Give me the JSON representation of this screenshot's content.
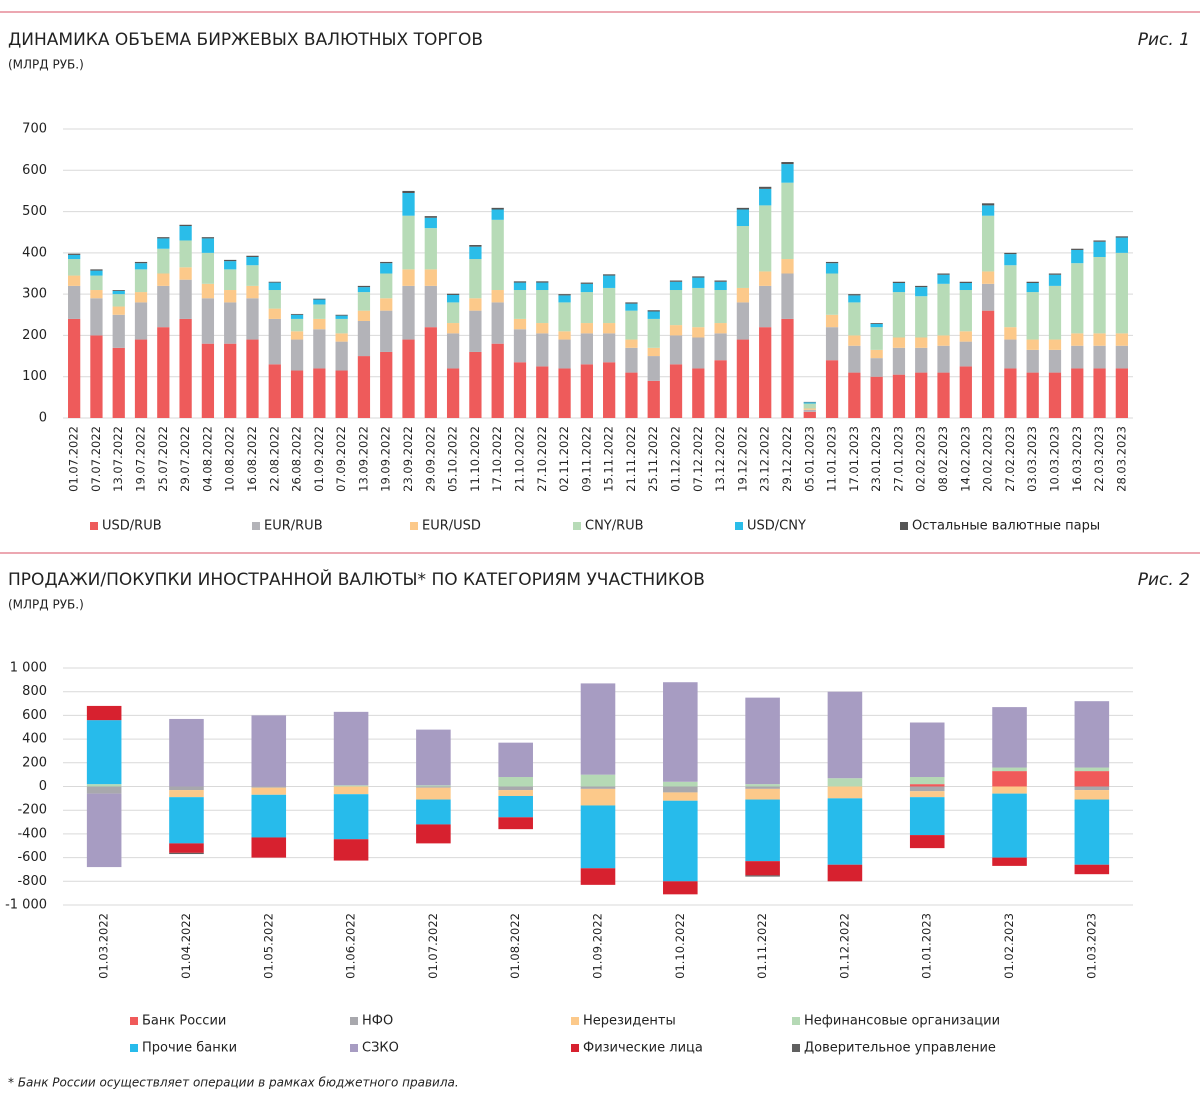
{
  "chart_data": [
    {
      "type": "stacked-bar",
      "title": "ДИНАМИКА ОБЪЕМА БИРЖЕВЫХ ВАЛЮТНЫХ ТОРГОВ",
      "subtitle": "(МЛРД РУБ.)",
      "figure_label": "Рис. 1",
      "categories": [
        "01.07.2022",
        "07.07.2022",
        "13.07.2022",
        "19.07.2022",
        "25.07.2022",
        "29.07.2022",
        "04.08.2022",
        "10.08.2022",
        "16.08.2022",
        "22.08.2022",
        "26.08.2022",
        "01.09.2022",
        "07.09.2022",
        "13.09.2022",
        "19.09.2022",
        "23.09.2022",
        "29.09.2022",
        "05.10.2022",
        "11.10.2022",
        "17.10.2022",
        "21.10.2022",
        "27.10.2022",
        "02.11.2022",
        "09.11.2022",
        "15.11.2022",
        "21.11.2022",
        "25.11.2022",
        "01.12.2022",
        "07.12.2022",
        "13.12.2022",
        "19.12.2022",
        "23.12.2022",
        "29.12.2022",
        "05.01.2023",
        "11.01.2023",
        "17.01.2023",
        "23.01.2023",
        "27.01.2023",
        "02.02.2023",
        "08.02.2023",
        "14.02.2023",
        "20.02.2023",
        "27.02.2023",
        "03.03.2023",
        "10.03.2023",
        "16.03.2023",
        "22.03.2023",
        "28.03.2023"
      ],
      "series": [
        {
          "name": "USD/RUB",
          "color": "#ee5b5b",
          "values": [
            240,
            200,
            170,
            190,
            220,
            240,
            180,
            180,
            190,
            130,
            115,
            120,
            115,
            150,
            160,
            190,
            220,
            120,
            160,
            180,
            135,
            125,
            120,
            130,
            135,
            110,
            90,
            130,
            120,
            140,
            190,
            220,
            240,
            15,
            140,
            110,
            100,
            105,
            110,
            110,
            125,
            260,
            120,
            110,
            110,
            120,
            120,
            120
          ]
        },
        {
          "name": "EUR/RUB",
          "color": "#b3b3b8",
          "values": [
            80,
            90,
            80,
            90,
            100,
            95,
            110,
            100,
            100,
            110,
            75,
            95,
            70,
            85,
            100,
            130,
            100,
            85,
            100,
            100,
            80,
            80,
            70,
            75,
            70,
            60,
            60,
            70,
            75,
            65,
            90,
            100,
            110,
            5,
            80,
            65,
            45,
            65,
            60,
            65,
            60,
            65,
            70,
            55,
            55,
            55,
            55,
            55
          ]
        },
        {
          "name": "EUR/USD",
          "color": "#fcc98a",
          "values": [
            25,
            20,
            20,
            25,
            30,
            30,
            35,
            30,
            30,
            25,
            20,
            25,
            20,
            25,
            30,
            40,
            40,
            25,
            30,
            30,
            25,
            25,
            20,
            25,
            25,
            20,
            20,
            25,
            25,
            25,
            35,
            35,
            35,
            3,
            30,
            25,
            20,
            25,
            25,
            25,
            25,
            30,
            30,
            25,
            25,
            30,
            30,
            30
          ]
        },
        {
          "name": "CNY/RUB",
          "color": "#b7dbb7",
          "values": [
            40,
            35,
            30,
            55,
            60,
            65,
            75,
            50,
            50,
            45,
            30,
            35,
            35,
            45,
            60,
            130,
            100,
            50,
            95,
            170,
            70,
            80,
            70,
            75,
            85,
            70,
            70,
            85,
            95,
            80,
            150,
            160,
            185,
            12,
            100,
            80,
            55,
            110,
            100,
            125,
            100,
            135,
            150,
            115,
            130,
            170,
            185,
            195
          ]
        },
        {
          "name": "USD/CNY",
          "color": "#2abde9",
          "values": [
            10,
            12,
            8,
            15,
            25,
            35,
            35,
            20,
            20,
            18,
            10,
            12,
            8,
            12,
            25,
            55,
            25,
            18,
            30,
            25,
            18,
            18,
            17,
            20,
            30,
            17,
            18,
            20,
            25,
            20,
            40,
            40,
            45,
            3,
            25,
            17,
            8,
            22,
            22,
            22,
            17,
            25,
            27,
            22,
            27,
            32,
            37,
            37
          ]
        },
        {
          "name": "Остальные валютные пары",
          "color": "#555555",
          "values": [
            3,
            3,
            2,
            3,
            3,
            3,
            3,
            3,
            3,
            2,
            2,
            2,
            2,
            3,
            3,
            5,
            4,
            3,
            4,
            4,
            3,
            3,
            3,
            3,
            3,
            3,
            3,
            3,
            3,
            3,
            4,
            5,
            5,
            1,
            3,
            3,
            2,
            3,
            3,
            3,
            3,
            5,
            3,
            3,
            3,
            3,
            3,
            3
          ]
        }
      ],
      "ylim": [
        0,
        700
      ],
      "yticks": [
        0,
        100,
        200,
        300,
        400,
        500,
        600,
        700
      ],
      "grid": true
    },
    {
      "type": "stacked-bar",
      "title": "ПРОДАЖИ/ПОКУПКИ ИНОСТРАННОЙ ВАЛЮТЫ* ПО КАТЕГОРИЯМ УЧАСТНИКОВ",
      "subtitle": "(МЛРД РУБ.)",
      "figure_label": "Рис. 2",
      "categories": [
        "01.03.2022",
        "01.04.2022",
        "01.05.2022",
        "01.06.2022",
        "01.07.2022",
        "01.08.2022",
        "01.09.2022",
        "01.10.2022",
        "01.11.2022",
        "01.12.2022",
        "01.01.2023",
        "01.02.2023",
        "01.03.2023"
      ],
      "series": [
        {
          "name": "Банк России",
          "color": "#f05a5a",
          "values": [
            0,
            0,
            0,
            0,
            0,
            0,
            0,
            0,
            0,
            0,
            20,
            130,
            130
          ]
        },
        {
          "name": "НФО",
          "color": "#a8a8ad",
          "values": [
            -60,
            -30,
            -10,
            0,
            -10,
            -30,
            -20,
            -50,
            -20,
            0,
            -40,
            0,
            -30
          ]
        },
        {
          "name": "Нерезиденты",
          "color": "#fcc98a",
          "values": [
            0,
            -60,
            -60,
            -65,
            -100,
            -50,
            -140,
            -70,
            -90,
            -100,
            -50,
            -60,
            -80
          ]
        },
        {
          "name": "Нефинансовые организации",
          "color": "#b5d9b5",
          "values": [
            20,
            0,
            0,
            10,
            10,
            80,
            100,
            40,
            20,
            70,
            60,
            30,
            30
          ]
        },
        {
          "name": "Прочие банки",
          "color": "#27bbeb",
          "values": [
            540,
            -390,
            -360,
            -380,
            -210,
            -180,
            -530,
            -680,
            -520,
            -560,
            -320,
            -540,
            -550
          ]
        },
        {
          "name": "СЗКО",
          "color": "#a79cc2",
          "values": [
            -620,
            570,
            600,
            620,
            470,
            290,
            770,
            840,
            730,
            730,
            460,
            510,
            560
          ]
        },
        {
          "name": "Физические лица",
          "color": "#d7212f",
          "values": [
            120,
            -80,
            -170,
            -180,
            -160,
            -100,
            -140,
            -110,
            -120,
            -140,
            -110,
            -70,
            -80
          ]
        },
        {
          "name": "Доверительное управление",
          "color": "#606060",
          "values": [
            0,
            -10,
            0,
            0,
            0,
            0,
            0,
            0,
            -10,
            0,
            0,
            0,
            0
          ]
        }
      ],
      "ylim": [
        -1000,
        1000
      ],
      "yticks": [
        {
          "value": -1000,
          "label": "-1 000"
        },
        -800,
        -600,
        -400,
        -200,
        0,
        200,
        400,
        600,
        800,
        {
          "value": 1000,
          "label": "1 000"
        }
      ],
      "grid": true
    }
  ],
  "footnote": "* Банк России осуществляет операции в рамках бюджетного правила."
}
